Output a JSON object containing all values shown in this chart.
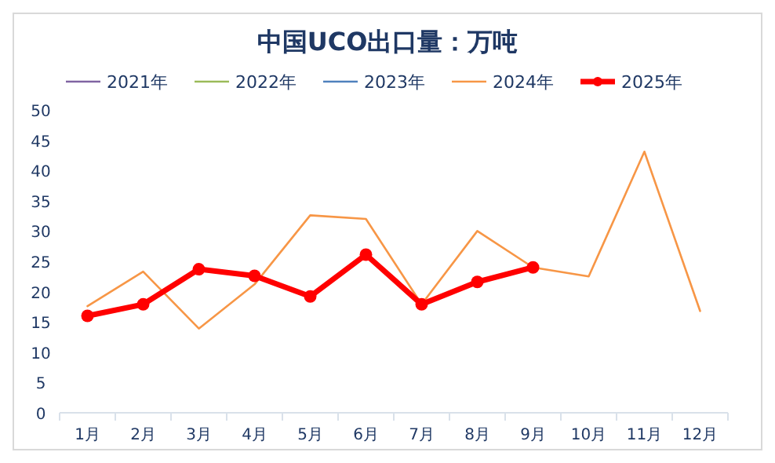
{
  "chart_data": {
    "type": "line",
    "title": "中国UCO出口量：万吨",
    "categories": [
      "1月",
      "2月",
      "3月",
      "4月",
      "5月",
      "6月",
      "7月",
      "8月",
      "9月",
      "10月",
      "11月",
      "12月"
    ],
    "series": [
      {
        "name": "2021年",
        "color": "#8064a2",
        "values": [
          null,
          null,
          null,
          null,
          null,
          null,
          null,
          null,
          null,
          null,
          null,
          null
        ]
      },
      {
        "name": "2022年",
        "color": "#9bbb59",
        "values": [
          null,
          null,
          null,
          null,
          null,
          null,
          null,
          null,
          null,
          null,
          null,
          null
        ]
      },
      {
        "name": "2023年",
        "color": "#4f81bd",
        "values": [
          null,
          null,
          null,
          null,
          null,
          null,
          null,
          null,
          null,
          null,
          null,
          null
        ]
      },
      {
        "name": "2024年",
        "color": "#f79646",
        "values": [
          17.6,
          23.3,
          13.9,
          21.2,
          32.6,
          32,
          17.9,
          30,
          24,
          22.5,
          43.1,
          16.8
        ]
      },
      {
        "name": "2025年",
        "color": "#ff0000",
        "marker": "circle",
        "values": [
          16,
          17.9,
          23.7,
          22.6,
          19.2,
          26.1,
          17.9,
          21.6,
          24,
          null,
          null,
          null
        ]
      }
    ],
    "ylim": [
      0,
      50
    ],
    "yticks": [
      0,
      5,
      10,
      15,
      20,
      25,
      30,
      35,
      40,
      45,
      50
    ],
    "grid": false,
    "legend": "top"
  }
}
